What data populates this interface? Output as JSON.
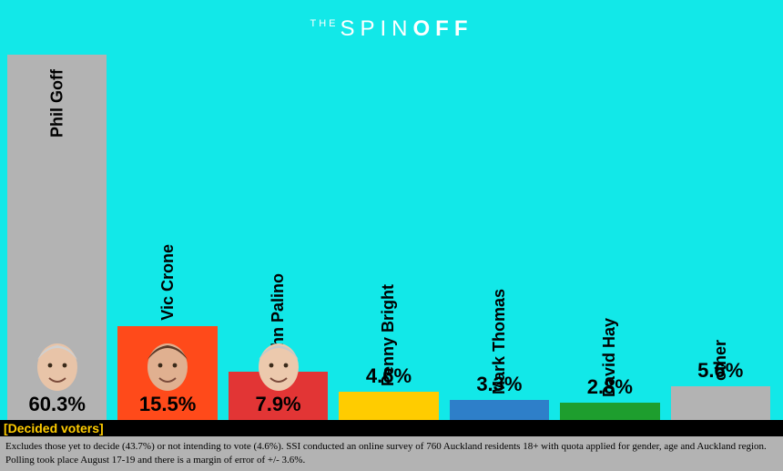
{
  "logo": {
    "prefix": "THE",
    "word_light": "SPIN",
    "word_bold": "OFF"
  },
  "chart": {
    "type": "bar",
    "background_color": "#12e8e8",
    "max_value": 60.3,
    "label_fontsize": 18,
    "value_fontsize": 22,
    "bars": [
      {
        "label": "Phil Goff",
        "value": 60.3,
        "value_text": "60.3%",
        "color": "#b3b3b3",
        "has_avatar": true,
        "value_inside": true,
        "label_inside": true,
        "avatar_skin": "#e8c4a8",
        "avatar_hair": "#d0d0d0"
      },
      {
        "label": "Vic Crone",
        "value": 15.5,
        "value_text": "15.5%",
        "color": "#ff4a1a",
        "has_avatar": true,
        "value_inside": true,
        "label_inside": false,
        "avatar_skin": "#e0b090",
        "avatar_hair": "#5a3a28"
      },
      {
        "label": "John Palino",
        "value": 7.9,
        "value_text": "7.9%",
        "color": "#e23535",
        "has_avatar": true,
        "value_inside": true,
        "label_inside": false,
        "avatar_skin": "#ecc9ad",
        "avatar_hair": "#c8c8c8"
      },
      {
        "label": "Penny Bright",
        "value": 4.6,
        "value_text": "4.6%",
        "color": "#ffcc00",
        "has_avatar": false,
        "value_inside": false,
        "label_inside": false
      },
      {
        "label": "Mark Thomas",
        "value": 3.3,
        "value_text": "3.3%",
        "color": "#2e7fc9",
        "has_avatar": false,
        "value_inside": false,
        "label_inside": false
      },
      {
        "label": "David Hay",
        "value": 2.8,
        "value_text": "2.8%",
        "color": "#1e9e2e",
        "has_avatar": false,
        "value_inside": false,
        "label_inside": false
      },
      {
        "label": "other",
        "value": 5.6,
        "value_text": "5.6%",
        "color": "#b3b3b3",
        "has_avatar": false,
        "value_inside": false,
        "label_inside": false
      }
    ]
  },
  "footer_strip": {
    "bg_color": "#000000",
    "text_color": "#ffcc00",
    "text": "[Decided voters]"
  },
  "footnote": {
    "bg_color": "#b3b3b3",
    "text_color": "#000000",
    "text": "Excludes those yet to decide (43.7%) or not intending to vote (4.6%). SSI conducted an online survey of 760 Auckland residents 18+ with quota applied for gender, age and Auckland region. Polling took place August 17-19 and there is a margin of error of +/- 3.6%."
  }
}
